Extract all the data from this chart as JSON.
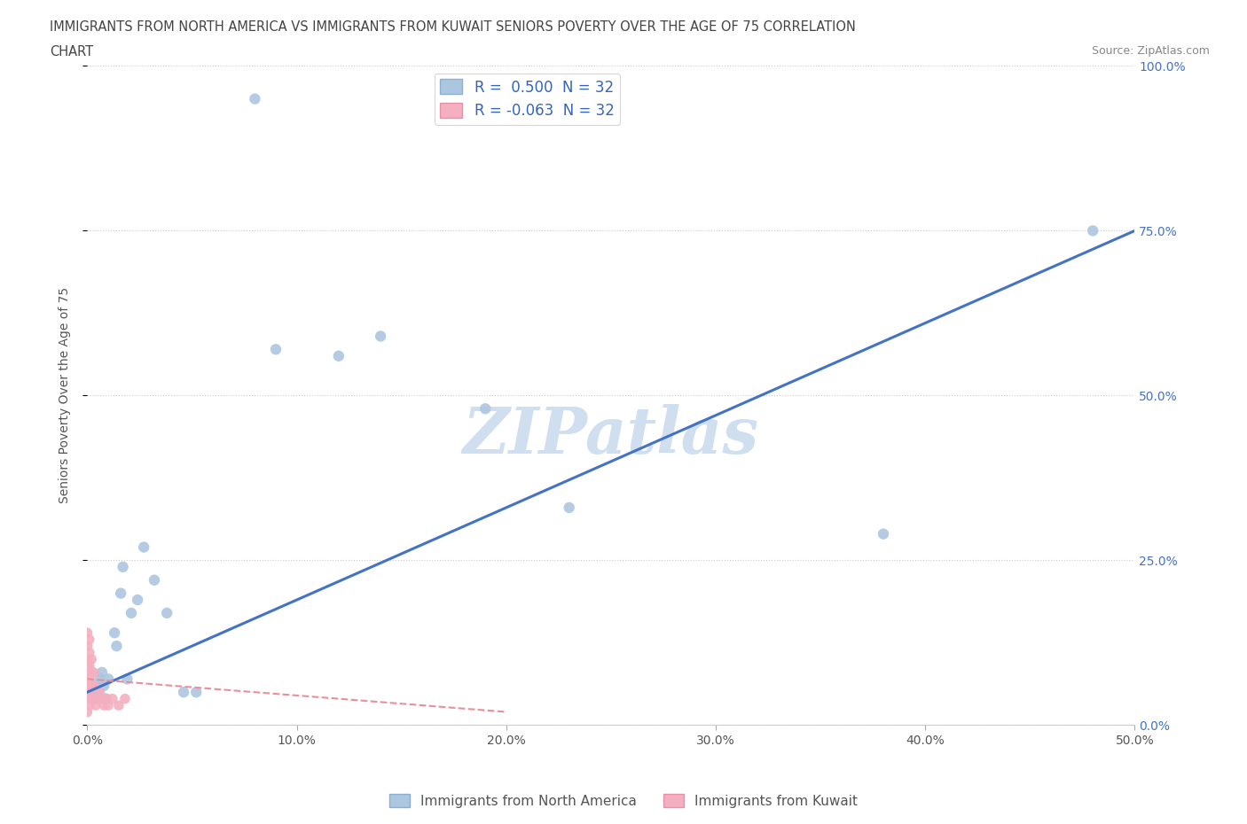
{
  "title_line1": "IMMIGRANTS FROM NORTH AMERICA VS IMMIGRANTS FROM KUWAIT SENIORS POVERTY OVER THE AGE OF 75 CORRELATION",
  "title_line2": "CHART",
  "source": "Source: ZipAtlas.com",
  "ylabel": "Seniors Poverty Over the Age of 75",
  "blue_r": 0.5,
  "blue_n": 32,
  "pink_r": -0.063,
  "pink_n": 32,
  "legend_label_blue": "Immigrants from North America",
  "legend_label_pink": "Immigrants from Kuwait",
  "blue_color": "#adc6e0",
  "pink_color": "#f4afc0",
  "line_blue_color": "#4472c4",
  "line_pink_color": "#e8909a",
  "watermark_text": "ZIPatlas",
  "watermark_color": "#d0dff0",
  "xlim": [
    0.0,
    0.5
  ],
  "ylim": [
    0.0,
    1.0
  ],
  "xtick_vals": [
    0.0,
    0.1,
    0.2,
    0.3,
    0.4,
    0.5
  ],
  "xtick_labels": [
    "0.0%",
    "10.0%",
    "20.0%",
    "30.0%",
    "40.0%",
    "50.0%"
  ],
  "ytick_vals": [
    0.0,
    0.25,
    0.5,
    0.75,
    1.0
  ],
  "ytick_labels": [
    "0.0%",
    "25.0%",
    "50.0%",
    "75.0%",
    "100.0%"
  ],
  "blue_x": [
    0.0,
    0.002,
    0.003,
    0.003,
    0.004,
    0.005,
    0.006,
    0.006,
    0.007,
    0.008,
    0.009,
    0.01,
    0.013,
    0.014,
    0.016,
    0.017,
    0.019,
    0.021,
    0.024,
    0.027,
    0.032,
    0.038,
    0.046,
    0.052,
    0.08,
    0.09,
    0.12,
    0.14,
    0.19,
    0.23,
    0.38,
    0.48
  ],
  "blue_y": [
    0.05,
    0.05,
    0.04,
    0.06,
    0.06,
    0.05,
    0.07,
    0.04,
    0.08,
    0.06,
    0.04,
    0.07,
    0.14,
    0.12,
    0.2,
    0.24,
    0.07,
    0.17,
    0.19,
    0.27,
    0.22,
    0.17,
    0.05,
    0.05,
    0.95,
    0.57,
    0.56,
    0.59,
    0.48,
    0.33,
    0.29,
    0.75
  ],
  "pink_x": [
    0.0,
    0.0,
    0.0,
    0.0,
    0.0,
    0.0,
    0.0,
    0.0,
    0.0,
    0.001,
    0.001,
    0.001,
    0.001,
    0.001,
    0.001,
    0.002,
    0.002,
    0.002,
    0.002,
    0.003,
    0.003,
    0.003,
    0.004,
    0.005,
    0.006,
    0.007,
    0.008,
    0.009,
    0.01,
    0.012,
    0.015,
    0.018
  ],
  "pink_y": [
    0.04,
    0.06,
    0.08,
    0.1,
    0.12,
    0.14,
    0.05,
    0.09,
    0.02,
    0.03,
    0.05,
    0.07,
    0.09,
    0.11,
    0.13,
    0.04,
    0.06,
    0.08,
    0.1,
    0.04,
    0.06,
    0.08,
    0.03,
    0.04,
    0.05,
    0.04,
    0.03,
    0.04,
    0.03,
    0.04,
    0.03,
    0.04
  ],
  "blue_line_x": [
    0.0,
    0.5
  ],
  "blue_line_y": [
    0.05,
    0.75
  ],
  "pink_line_x": [
    0.0,
    0.2
  ],
  "pink_line_y": [
    0.07,
    0.02
  ]
}
